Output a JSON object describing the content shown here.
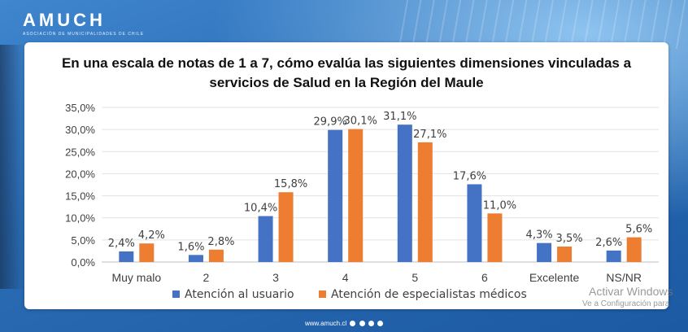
{
  "brand": {
    "logo": "AMUCH",
    "tagline": "ASOCIACIÓN DE MUNICIPALIDADES DE CHILE"
  },
  "chart_data": {
    "type": "bar",
    "title_line1": "En una escala de notas de 1 a 7, cómo evalúa las siguientes dimensiones vinculadas a",
    "title_line2": "servicios de Salud en la Región del Maule",
    "categories": [
      "Muy malo",
      "2",
      "3",
      "4",
      "5",
      "6",
      "Excelente",
      "NS/NR"
    ],
    "series": [
      {
        "name": "Atención al usuario",
        "color": "#4472c4",
        "values": [
          2.4,
          1.6,
          10.4,
          29.9,
          31.1,
          17.6,
          4.3,
          2.6
        ],
        "labels": [
          "2,4%",
          "1,6%",
          "10,4%",
          "29,9%",
          "31,1%",
          "17,6%",
          "4,3%",
          "2,6%"
        ]
      },
      {
        "name": "Atención de especialistas médicos",
        "color": "#ed7d31",
        "values": [
          4.2,
          2.8,
          15.8,
          30.1,
          27.1,
          11.0,
          3.5,
          5.6
        ],
        "labels": [
          "4,2%",
          "2,8%",
          "15,8%",
          "30,1%",
          "27,1%",
          "11,0%",
          "3,5%",
          "5,6%"
        ]
      }
    ],
    "yticks": [
      0,
      5,
      10,
      15,
      20,
      25,
      30,
      35
    ],
    "ytick_labels": [
      "0,0%",
      "5,0%",
      "10,0%",
      "15,0%",
      "20,0%",
      "25,0%",
      "30,0%",
      "35,0%"
    ],
    "ylim": [
      0,
      35
    ],
    "grid": true,
    "legend_position": "bottom"
  },
  "footer": {
    "site": "www.amuch.cl"
  },
  "watermark": {
    "line1": "Activar Windows",
    "line2": "Ve a Configuración para"
  }
}
